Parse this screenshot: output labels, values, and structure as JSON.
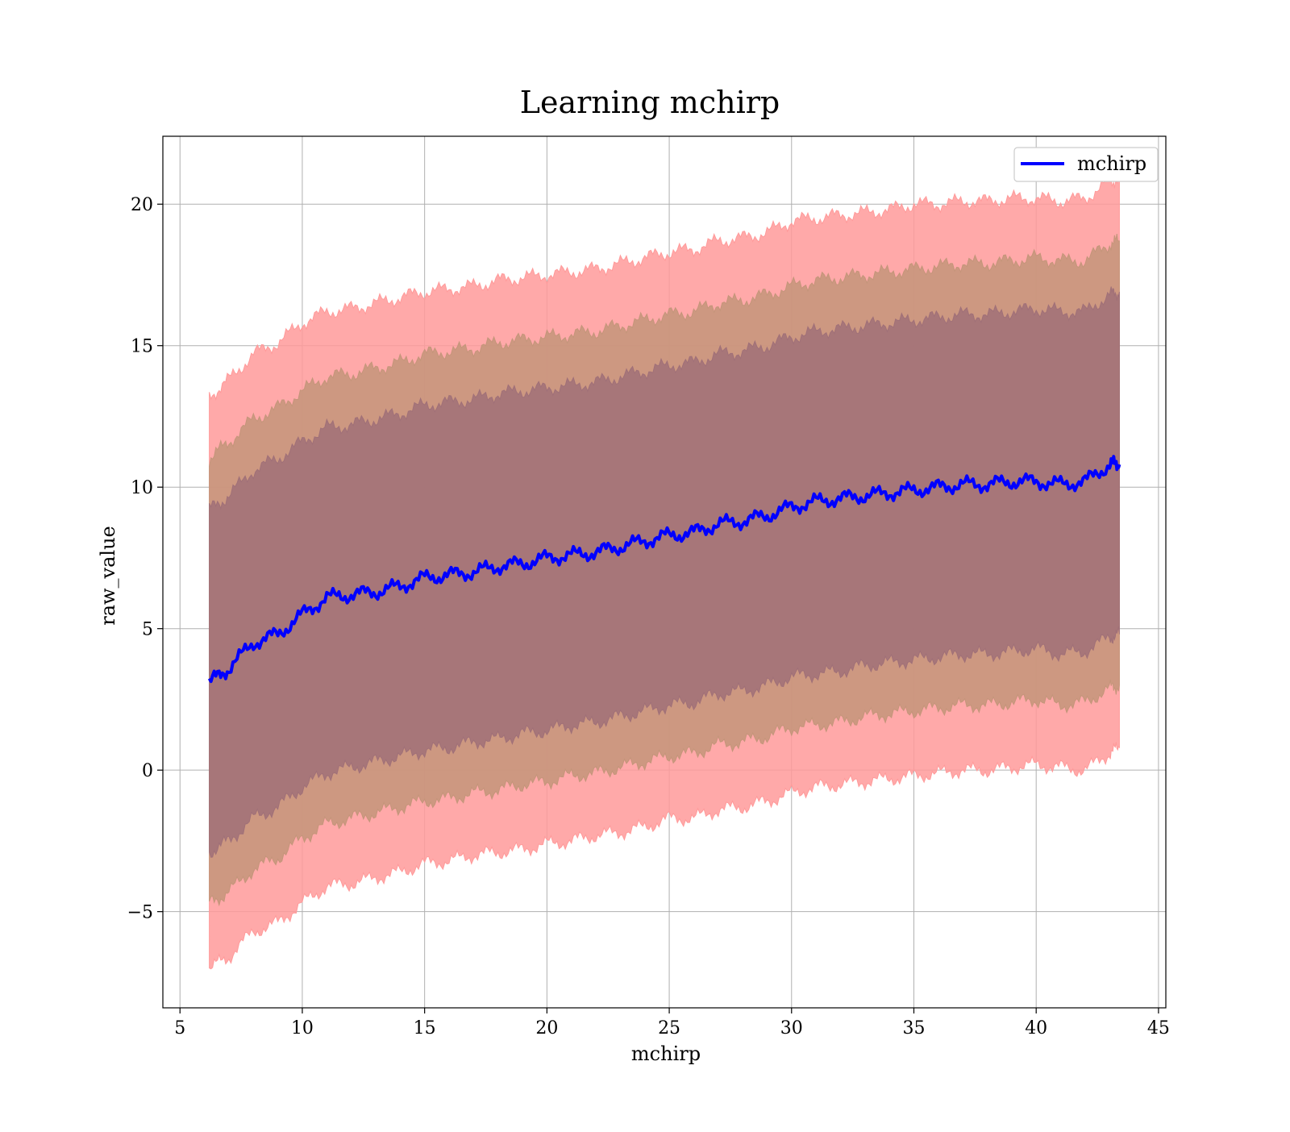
{
  "chart_data": {
    "type": "area",
    "title": "Learning mchirp",
    "xlabel": "mchirp",
    "ylabel": "raw_value",
    "xlim": [
      4.3,
      45.3
    ],
    "ylim": [
      -8.4,
      22.4
    ],
    "xticks": [
      5,
      10,
      15,
      20,
      25,
      30,
      35,
      40,
      45
    ],
    "xtick_labels": [
      "5",
      "10",
      "15",
      "20",
      "25",
      "30",
      "35",
      "40",
      "45"
    ],
    "yticks": [
      -5,
      0,
      5,
      10,
      15,
      20
    ],
    "ytick_labels": [
      "−5",
      "0",
      "5",
      "10",
      "15",
      "20"
    ],
    "grid": true,
    "legend": {
      "position": "top-right",
      "entries": [
        "mchirp"
      ]
    },
    "colors": {
      "line": "#0000ff",
      "band_3sigma": "#ff9a9a",
      "band_2sigma": "#c4957a",
      "band_1sigma": "#a07078"
    },
    "x": [
      6.2,
      7,
      8,
      9,
      10,
      11,
      12,
      13,
      14,
      15,
      16,
      17,
      18,
      19,
      20,
      21,
      22,
      23,
      24,
      25,
      26,
      27,
      28,
      29,
      30,
      31,
      32,
      33,
      34,
      35,
      36,
      37,
      38,
      39,
      40,
      41,
      42,
      43,
      43.4
    ],
    "series": [
      {
        "name": "mchirp",
        "values": [
          3.1,
          3.6,
          4.5,
          4.8,
          5.5,
          6.1,
          6.2,
          6.3,
          6.5,
          6.8,
          6.9,
          7.0,
          7.2,
          7.3,
          7.5,
          7.6,
          7.7,
          7.9,
          8.1,
          8.3,
          8.4,
          8.7,
          8.8,
          9.0,
          9.3,
          9.5,
          9.6,
          9.7,
          9.8,
          9.9,
          10.0,
          10.1,
          10.1,
          10.2,
          10.2,
          10.1,
          10.2,
          10.8,
          10.8
        ]
      }
    ],
    "bands": [
      {
        "level": "3 sigma",
        "upper": [
          13.2,
          13.8,
          14.7,
          15.1,
          15.8,
          16.2,
          16.3,
          16.5,
          16.7,
          16.9,
          17.0,
          17.1,
          17.3,
          17.4,
          17.5,
          17.6,
          17.7,
          17.9,
          18.1,
          18.3,
          18.4,
          18.7,
          18.8,
          19.0,
          19.4,
          19.5,
          19.6,
          19.7,
          19.8,
          20.0,
          20.0,
          20.1,
          20.1,
          20.2,
          20.2,
          20.1,
          20.2,
          20.8,
          20.9
        ],
        "lower": [
          -7.0,
          -6.6,
          -5.7,
          -5.4,
          -4.7,
          -4.1,
          -4.0,
          -3.8,
          -3.6,
          -3.3,
          -3.2,
          -3.0,
          -2.9,
          -2.8,
          -2.6,
          -2.5,
          -2.3,
          -2.2,
          -2.0,
          -1.7,
          -1.7,
          -1.4,
          -1.3,
          -1.1,
          -0.8,
          -0.6,
          -0.5,
          -0.4,
          -0.3,
          -0.2,
          -0.1,
          0.0,
          0.0,
          0.1,
          0.2,
          0.1,
          0.0,
          0.6,
          0.8
        ]
      },
      {
        "level": "2 sigma",
        "upper": [
          11.0,
          11.6,
          12.4,
          12.8,
          13.4,
          13.9,
          14.0,
          14.2,
          14.4,
          14.7,
          14.8,
          14.9,
          15.1,
          15.2,
          15.3,
          15.4,
          15.5,
          15.7,
          15.9,
          16.1,
          16.2,
          16.5,
          16.6,
          16.8,
          17.1,
          17.3,
          17.4,
          17.5,
          17.6,
          17.7,
          17.8,
          17.9,
          17.9,
          18.0,
          18.1,
          18.0,
          18.0,
          18.6,
          18.7
        ],
        "lower": [
          -4.7,
          -4.3,
          -3.5,
          -3.1,
          -2.4,
          -1.9,
          -1.7,
          -1.5,
          -1.3,
          -1.1,
          -1.0,
          -0.8,
          -0.7,
          -0.5,
          -0.4,
          -0.2,
          -0.1,
          0.1,
          0.3,
          0.5,
          0.6,
          0.9,
          1.0,
          1.2,
          1.5,
          1.6,
          1.7,
          1.9,
          2.0,
          2.1,
          2.2,
          2.3,
          2.3,
          2.4,
          2.5,
          2.3,
          2.4,
          2.9,
          3.0
        ]
      },
      {
        "level": "1 sigma",
        "upper": [
          9.2,
          9.7,
          10.6,
          11.0,
          11.6,
          12.1,
          12.2,
          12.4,
          12.6,
          12.9,
          13.0,
          13.1,
          13.3,
          13.4,
          13.5,
          13.6,
          13.7,
          13.9,
          14.1,
          14.3,
          14.4,
          14.7,
          14.8,
          15.0,
          15.3,
          15.5,
          15.6,
          15.7,
          15.8,
          15.9,
          16.0,
          16.1,
          16.1,
          16.2,
          16.3,
          16.2,
          16.2,
          16.8,
          16.9
        ],
        "lower": [
          -2.9,
          -2.5,
          -1.7,
          -1.3,
          -0.6,
          -0.1,
          0.1,
          0.3,
          0.5,
          0.7,
          0.8,
          1.0,
          1.1,
          1.3,
          1.4,
          1.6,
          1.7,
          1.9,
          2.1,
          2.3,
          2.4,
          2.7,
          2.8,
          3.0,
          3.3,
          3.4,
          3.5,
          3.7,
          3.8,
          3.9,
          4.0,
          4.1,
          4.1,
          4.2,
          4.3,
          4.1,
          4.2,
          4.7,
          4.8
        ]
      }
    ]
  }
}
